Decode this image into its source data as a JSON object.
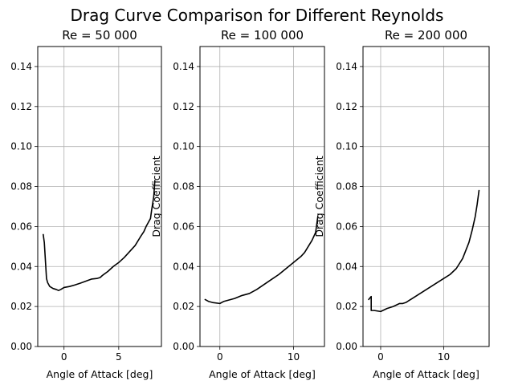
{
  "figure": {
    "title": "Drag Curve Comparison for Different Reynolds"
  },
  "chart_data": [
    {
      "type": "line",
      "title": "Re = 50 000",
      "xlabel": "Angle of Attack [deg]",
      "ylabel": "",
      "xlim": [
        -2.4,
        8.9
      ],
      "ylim": [
        0,
        0.15
      ],
      "xticks": [
        0,
        5
      ],
      "xtick_labels": [
        "0",
        "5"
      ],
      "yticks": [
        0.0,
        0.02,
        0.04,
        0.06,
        0.08,
        0.1,
        0.12,
        0.14
      ],
      "ytick_labels": [
        "0.00",
        "0.02",
        "0.04",
        "0.06",
        "0.08",
        "0.10",
        "0.12",
        "0.14"
      ],
      "grid": true,
      "series": [
        {
          "color": "#000000",
          "x": [
            -1.9,
            -1.8,
            -1.7,
            -1.6,
            -1.5,
            -1.3,
            -1.0,
            -0.7,
            -0.5,
            -0.3,
            0.0,
            0.5,
            1.0,
            1.5,
            2.0,
            2.5,
            3.0,
            3.3,
            3.5,
            4.0,
            4.5,
            5.0,
            5.5,
            6.0,
            6.5,
            7.0,
            7.3,
            7.5,
            7.7,
            7.9,
            8.0,
            8.2,
            8.3
          ],
          "y": [
            0.056,
            0.052,
            0.043,
            0.034,
            0.032,
            0.03,
            0.029,
            0.0285,
            0.028,
            0.0285,
            0.0295,
            0.03,
            0.0308,
            0.0317,
            0.0327,
            0.0337,
            0.034,
            0.0345,
            0.0355,
            0.0375,
            0.04,
            0.042,
            0.0445,
            0.0475,
            0.0505,
            0.055,
            0.0575,
            0.06,
            0.062,
            0.064,
            0.068,
            0.075,
            0.083
          ]
        }
      ]
    },
    {
      "type": "line",
      "title": "Re = 100 000",
      "xlabel": "Angle of Attack [deg]",
      "ylabel": "Drag Coefficient",
      "xlim": [
        -2.7,
        14.2
      ],
      "ylim": [
        0,
        0.15
      ],
      "xticks": [
        0,
        10
      ],
      "xtick_labels": [
        "0",
        "10"
      ],
      "yticks": [
        0.0,
        0.02,
        0.04,
        0.06,
        0.08,
        0.1,
        0.12,
        0.14
      ],
      "ytick_labels": [
        "0.00",
        "0.02",
        "0.04",
        "0.06",
        "0.08",
        "0.10",
        "0.12",
        "0.14"
      ],
      "grid": true,
      "series": [
        {
          "color": "#000000",
          "x": [
            -2.0,
            -1.5,
            -1.0,
            0.0,
            0.5,
            1.0,
            2.0,
            3.0,
            3.5,
            4.0,
            5.0,
            6.0,
            7.0,
            8.0,
            9.0,
            10.0,
            11.0,
            11.5,
            12.0,
            12.5,
            13.0,
            13.3
          ],
          "y": [
            0.0235,
            0.0225,
            0.022,
            0.0215,
            0.0225,
            0.023,
            0.024,
            0.0255,
            0.026,
            0.0265,
            0.0285,
            0.031,
            0.0335,
            0.036,
            0.039,
            0.042,
            0.045,
            0.047,
            0.05,
            0.053,
            0.057,
            0.065
          ]
        }
      ]
    },
    {
      "type": "line",
      "title": "Re = 200 000",
      "xlabel": "Angle of Attack [deg]",
      "ylabel": "Drag Coefficient",
      "xlim": [
        -2.8,
        17.2
      ],
      "ylim": [
        0,
        0.15
      ],
      "xticks": [
        0,
        10
      ],
      "xtick_labels": [
        "0",
        "10"
      ],
      "yticks": [
        0.0,
        0.02,
        0.04,
        0.06,
        0.08,
        0.1,
        0.12,
        0.14
      ],
      "ytick_labels": [
        "0.00",
        "0.02",
        "0.04",
        "0.06",
        "0.08",
        "0.10",
        "0.12",
        "0.14"
      ],
      "grid": true,
      "series": [
        {
          "color": "#000000",
          "x": [
            -1.9,
            -1.5,
            -1.5,
            -1.0,
            0.0,
            1.0,
            2.0,
            3.0,
            3.5,
            4.0,
            5.0,
            6.0,
            7.0,
            8.0,
            9.0,
            10.0,
            11.0,
            12.0,
            13.0,
            13.5,
            14.0,
            14.5,
            15.0,
            15.3,
            15.6
          ],
          "y": [
            0.0235,
            0.025,
            0.018,
            0.018,
            0.0175,
            0.019,
            0.02,
            0.0215,
            0.0215,
            0.022,
            0.024,
            0.026,
            0.028,
            0.03,
            0.032,
            0.034,
            0.036,
            0.039,
            0.044,
            0.048,
            0.052,
            0.058,
            0.065,
            0.071,
            0.078
          ]
        }
      ]
    }
  ]
}
